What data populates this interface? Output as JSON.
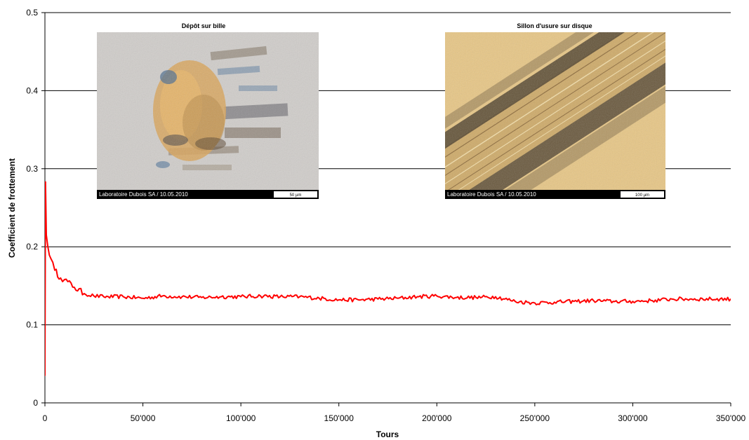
{
  "chart_data": {
    "type": "line",
    "xlabel": "Tours",
    "ylabel": "Coefficient de frottement",
    "xlim": [
      0,
      350000
    ],
    "ylim": [
      0,
      0.5
    ],
    "x_ticks": [
      "0",
      "50'000",
      "100'000",
      "150'000",
      "200'000",
      "250'000",
      "300'000",
      "350'000"
    ],
    "y_ticks": [
      "0",
      "0.1",
      "0.2",
      "0.3",
      "0.4",
      "0.5"
    ],
    "grid": "horizontal",
    "legend": "none",
    "series": [
      {
        "color": "#ff0000",
        "x": [
          0,
          300,
          700,
          1500,
          3000,
          5000,
          8000,
          10000,
          15000,
          20000,
          25000,
          30000,
          40000,
          50000,
          60000,
          70000,
          80000,
          90000,
          100000,
          110000,
          120000,
          130000,
          140000,
          150000,
          160000,
          170000,
          180000,
          190000,
          200000,
          210000,
          220000,
          230000,
          240000,
          250000,
          260000,
          270000,
          280000,
          290000,
          300000,
          310000,
          320000,
          330000,
          340000,
          350000
        ],
        "y": [
          0.035,
          0.283,
          0.215,
          0.2,
          0.185,
          0.17,
          0.16,
          0.158,
          0.148,
          0.14,
          0.137,
          0.136,
          0.136,
          0.134,
          0.137,
          0.136,
          0.135,
          0.136,
          0.136,
          0.137,
          0.136,
          0.136,
          0.134,
          0.132,
          0.132,
          0.133,
          0.134,
          0.136,
          0.137,
          0.135,
          0.135,
          0.136,
          0.13,
          0.128,
          0.129,
          0.13,
          0.131,
          0.13,
          0.13,
          0.131,
          0.133,
          0.133,
          0.133,
          0.133
        ]
      }
    ]
  },
  "insets": [
    {
      "title": "Dépôt sur bille",
      "caption": "Laboratoire Dubois SA / 10.05.2010",
      "scale_label": "50 µm",
      "colors": {
        "background": "#c9c7c3",
        "deposit": "#d9a55a",
        "dark": "#5a4630",
        "blue": "#5f7fa0"
      }
    },
    {
      "title": "Sillon d'usure sur disque",
      "caption": "Laboratoire Dubois SA / 10.05.2010",
      "scale_label": "100 µm",
      "colors": {
        "background": "#e7c685",
        "groove": "#c9a463",
        "debris": "#3a2f22"
      }
    }
  ]
}
